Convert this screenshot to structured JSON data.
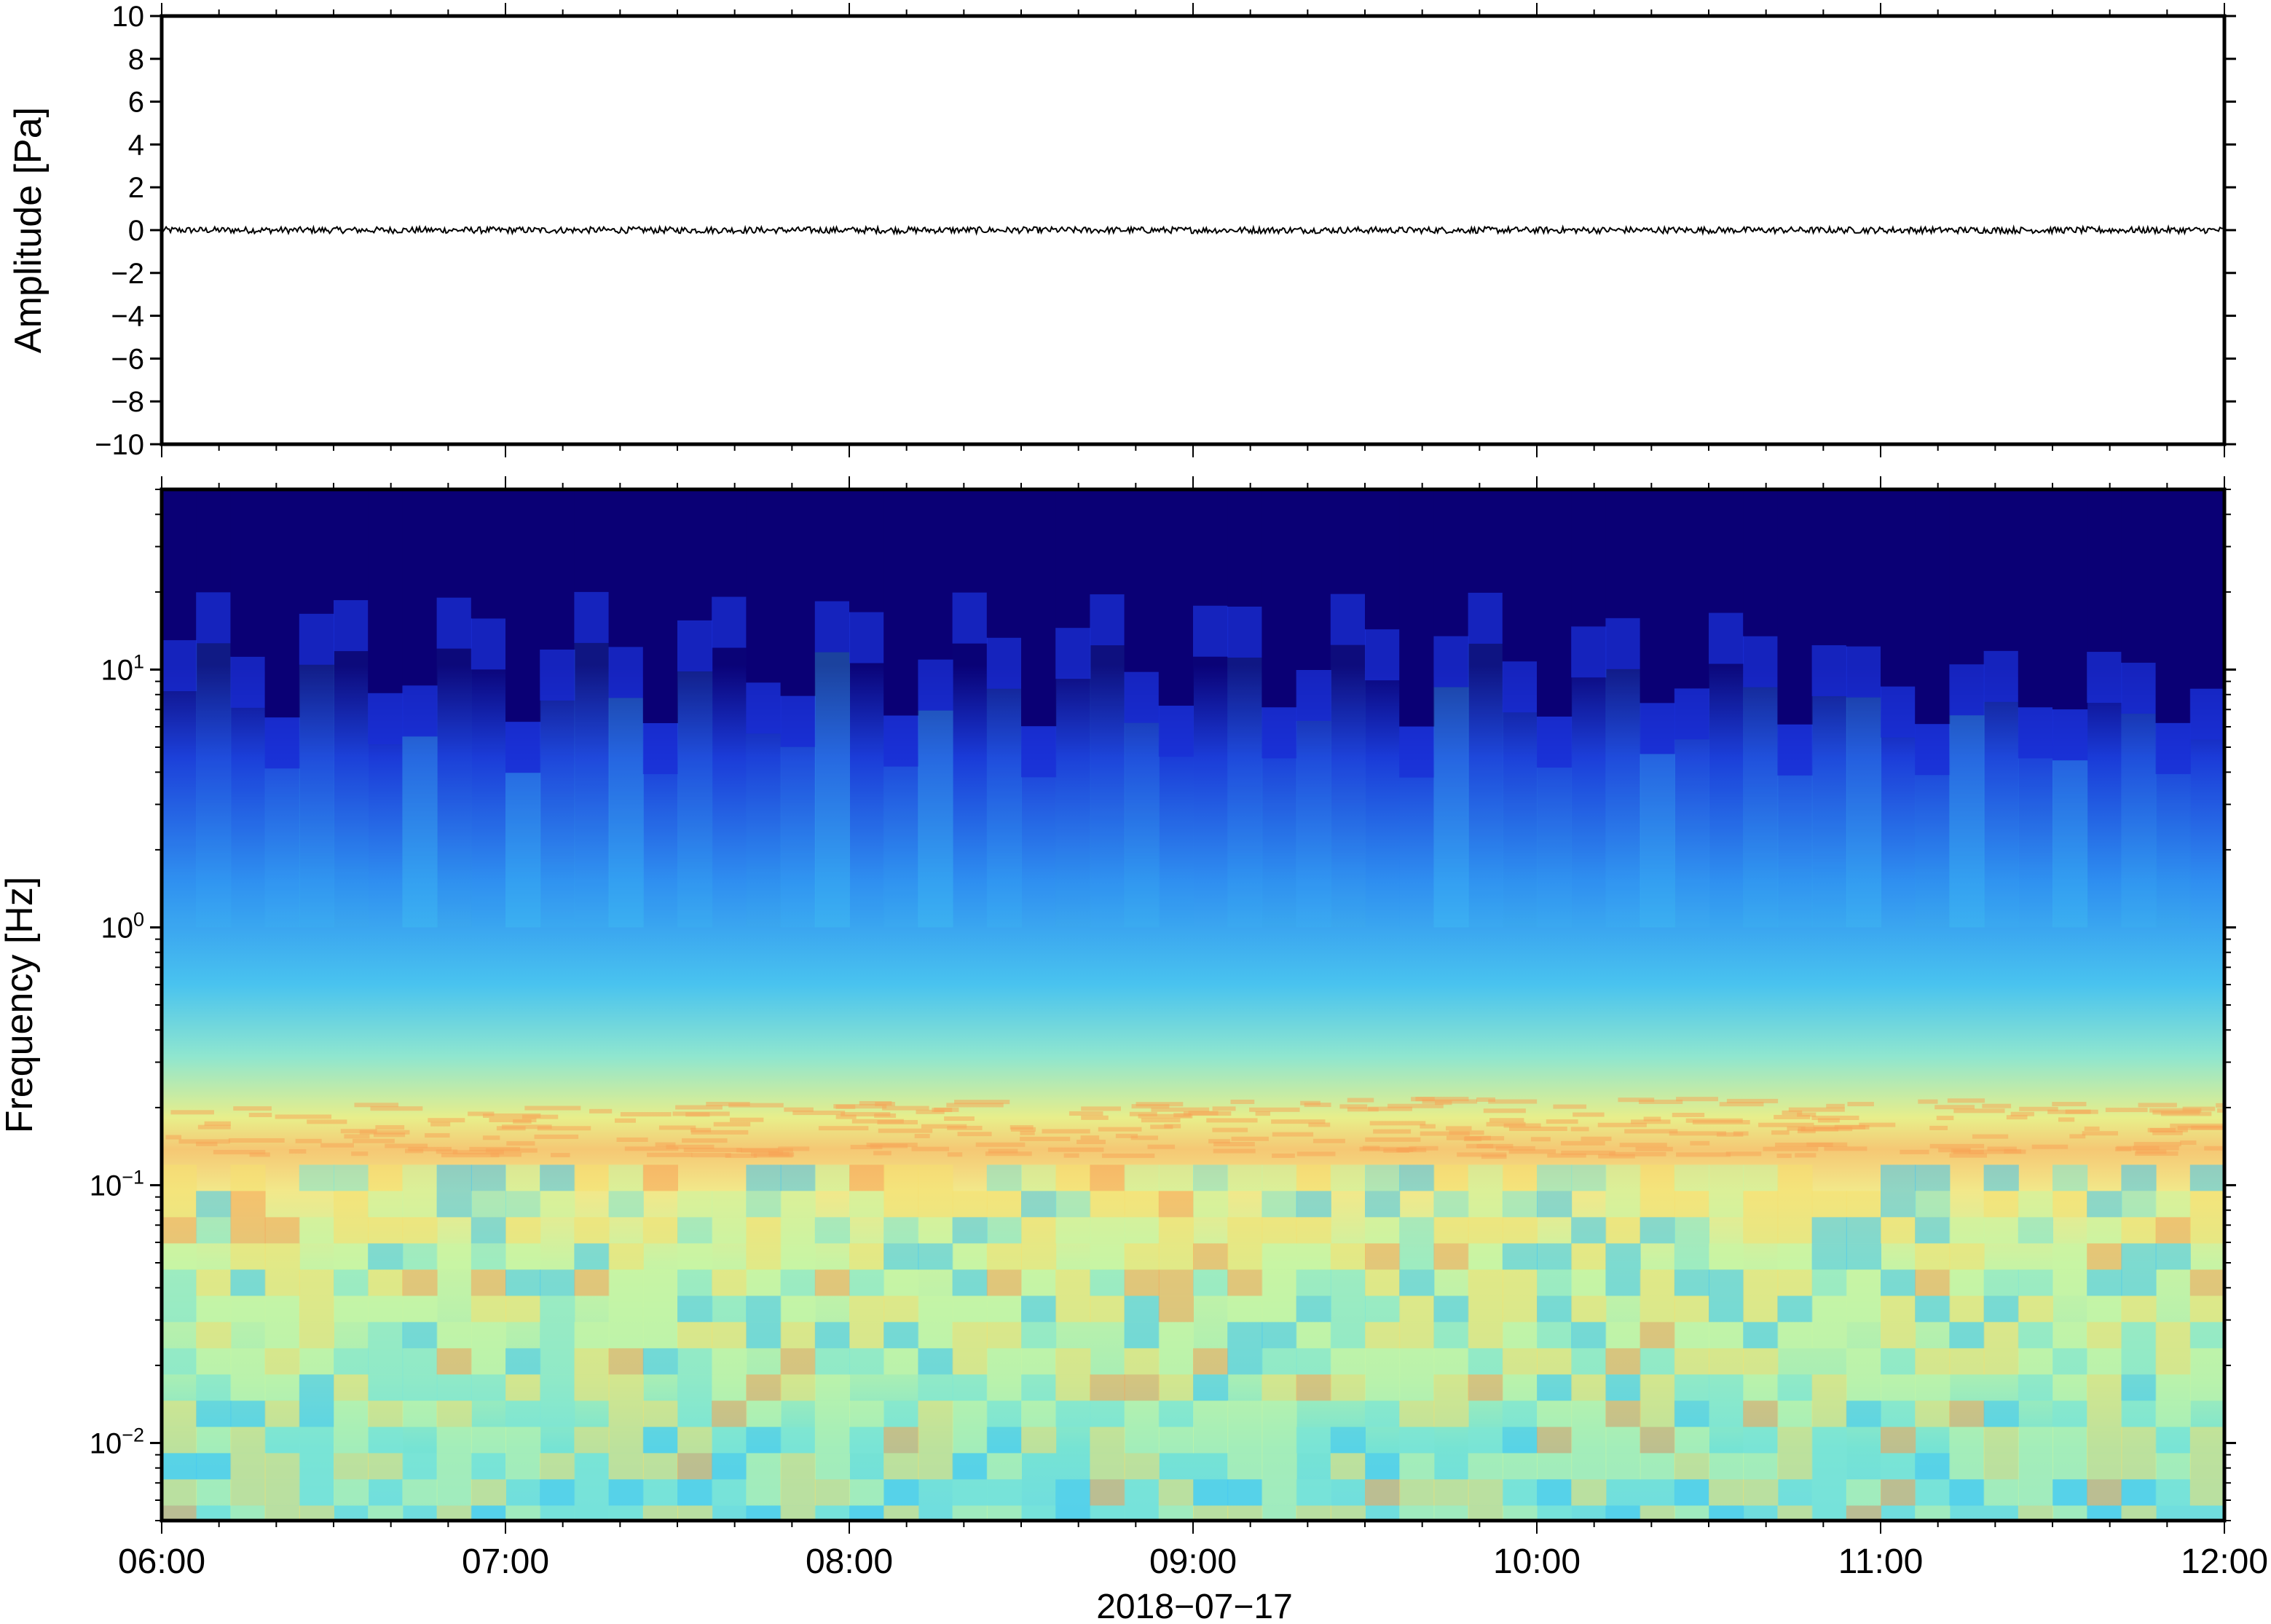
{
  "chart_data": [
    {
      "type": "line",
      "ylabel": "Amplitude [Pa]",
      "xlabel": "",
      "ylim": [
        -10,
        10
      ],
      "yticks": [
        "10",
        "8",
        "6",
        "4",
        "2",
        "0",
        "−2",
        "−4",
        "−6",
        "−8",
        "−10"
      ],
      "ytick_values": [
        10,
        8,
        6,
        4,
        2,
        0,
        -2,
        -4,
        -6,
        -8,
        -10
      ],
      "xlim": [
        "06:00",
        "12:00"
      ],
      "series": [
        {
          "color": "#000000",
          "x": [
            "06:00",
            "12:00"
          ],
          "y": [
            0.0,
            0.0
          ],
          "note_range": [
            -0.15,
            0.15
          ]
        }
      ],
      "grid": false
    },
    {
      "type": "heatmap",
      "ylabel": "Frequency [Hz]",
      "xlabel": "2018−07−17",
      "yscale": "log",
      "ylim": [
        0.005,
        50
      ],
      "yticks": [
        {
          "base": "10",
          "exp": "1",
          "value": 10
        },
        {
          "base": "10",
          "exp": "0",
          "value": 1
        },
        {
          "base": "10",
          "exp": "−1",
          "value": 0.1
        },
        {
          "base": "10",
          "exp": "−2",
          "value": 0.01
        }
      ],
      "xticks": [
        "06:00",
        "07:00",
        "08:00",
        "09:00",
        "10:00",
        "11:00",
        "12:00"
      ],
      "xlim": [
        "06:00",
        "12:00"
      ],
      "colormap": [
        "#0a0075",
        "#1a2fd6",
        "#2f8ef0",
        "#3fc7f4",
        "#7be6d7",
        "#c8f5a4",
        "#f5e070",
        "#f7a356"
      ],
      "band_peak_frequency_hz": 0.17,
      "upper_cutoff_hz_range": [
        6,
        20
      ],
      "grid": false
    }
  ]
}
